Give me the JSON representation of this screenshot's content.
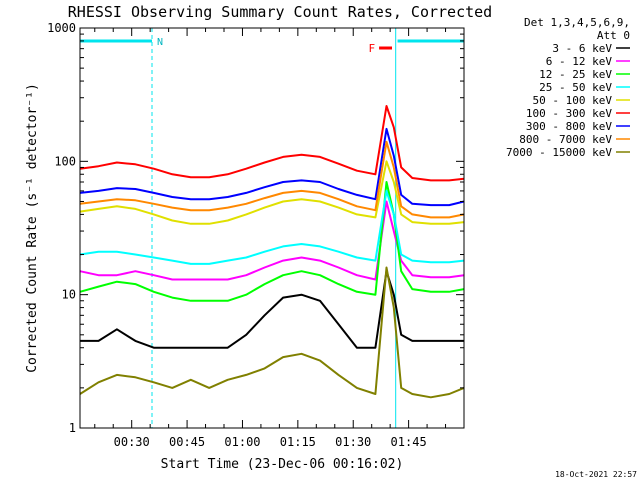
{
  "chart_data": {
    "type": "line",
    "title": "RHESSI Observing Summary Count Rates, Corrected",
    "xlabel": "Start Time (23-Dec-06 00:16:02)",
    "ylabel": "Corrected Count Rate (s⁻¹ detector⁻¹)",
    "y_scale": "log",
    "ylim": [
      1,
      1000
    ],
    "xlim_minutes_after_start": [
      0,
      104
    ],
    "x_tick_labels": [
      "00:30",
      "00:45",
      "01:00",
      "01:15",
      "01:30",
      "01:45"
    ],
    "x_ticks_minutes": [
      14,
      29,
      44,
      59,
      74,
      89
    ],
    "y_tick_labels": [
      "1",
      "10",
      "100",
      "1000"
    ],
    "y_ticks": [
      1,
      10,
      100,
      1000
    ],
    "legend_header": [
      "Det 1,3,4,5,6,9,",
      "Att 0"
    ],
    "legend_placement": "right",
    "timestamp": "18-Oct-2021 22:57",
    "annotations": {
      "night_label": "N",
      "flare_label": "F",
      "night_intervals_minutes": [
        [
          0,
          19.5
        ],
        [
          86,
          104
        ]
      ],
      "flare_interval_minutes": [
        81,
        84.5
      ],
      "vertical_markers_minutes": [
        0,
        19.5,
        85.5,
        104
      ]
    },
    "x": [
      0,
      5,
      10,
      15,
      20,
      25,
      30,
      35,
      40,
      45,
      50,
      55,
      60,
      65,
      70,
      75,
      80,
      83,
      85,
      87,
      90,
      95,
      100,
      104
    ],
    "series": [
      {
        "name": "3 - 6 keV",
        "color": "#000000",
        "values": [
          4.5,
          4.5,
          5.5,
          4.5,
          4,
          4,
          4,
          4,
          4,
          5,
          7,
          9.5,
          10,
          9,
          6,
          4,
          4,
          15,
          10,
          5,
          4.5,
          4.5,
          4.5,
          4.5
        ]
      },
      {
        "name": "6 - 12 keV",
        "color": "#ff00ff",
        "values": [
          15,
          14,
          14,
          15,
          14,
          13,
          13,
          13,
          13,
          14,
          16,
          18,
          19,
          18,
          16,
          14,
          13,
          50,
          30,
          18,
          14,
          13.5,
          13.5,
          14
        ]
      },
      {
        "name": "12 - 25 keV",
        "color": "#00ff00",
        "values": [
          10.5,
          11.5,
          12.5,
          12,
          10.5,
          9.5,
          9,
          9,
          9,
          10,
          12,
          14,
          15,
          14,
          12,
          10.5,
          10,
          70,
          40,
          15,
          11,
          10.5,
          10.5,
          11
        ]
      },
      {
        "name": "25 - 50 keV",
        "color": "#00ffff",
        "values": [
          20,
          21,
          21,
          20,
          19,
          18,
          17,
          17,
          18,
          19,
          21,
          23,
          24,
          23,
          21,
          19,
          18,
          60,
          40,
          20,
          18,
          17.5,
          17.5,
          18
        ]
      },
      {
        "name": "50 - 100 keV",
        "color": "#e0e000",
        "values": [
          42,
          44,
          46,
          44,
          40,
          36,
          34,
          34,
          36,
          40,
          45,
          50,
          52,
          50,
          45,
          40,
          38,
          100,
          70,
          40,
          35,
          34,
          34,
          35
        ]
      },
      {
        "name": "100 - 300 keV",
        "color": "#ff0000",
        "values": [
          88,
          92,
          98,
          95,
          88,
          80,
          76,
          76,
          80,
          88,
          98,
          108,
          112,
          108,
          96,
          85,
          80,
          260,
          180,
          90,
          75,
          72,
          72,
          74
        ]
      },
      {
        "name": "300 - 800 keV",
        "color": "#0000ff",
        "values": [
          58,
          60,
          63,
          62,
          58,
          54,
          52,
          52,
          54,
          58,
          64,
          70,
          72,
          70,
          62,
          56,
          52,
          175,
          110,
          56,
          48,
          47,
          47,
          50
        ]
      },
      {
        "name": "800 - 7000 keV",
        "color": "#ff8800",
        "values": [
          48,
          50,
          52,
          51,
          48,
          45,
          43,
          43,
          45,
          48,
          53,
          58,
          60,
          58,
          52,
          46,
          43,
          140,
          90,
          46,
          40,
          38,
          38,
          40
        ]
      },
      {
        "name": "7000 - 15000 keV",
        "color": "#808000",
        "values": [
          1.8,
          2.2,
          2.5,
          2.4,
          2.2,
          2,
          2.3,
          2,
          2.3,
          2.5,
          2.8,
          3.4,
          3.6,
          3.2,
          2.5,
          2,
          1.8,
          16,
          8,
          2,
          1.8,
          1.7,
          1.8,
          2
        ]
      }
    ]
  }
}
